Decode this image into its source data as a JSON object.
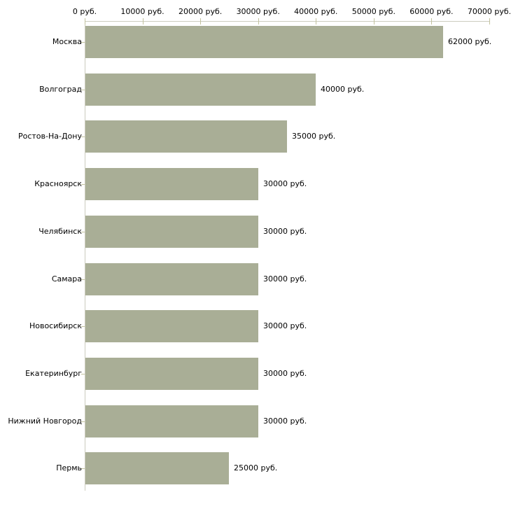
{
  "chart_data": {
    "type": "bar",
    "orientation": "horizontal",
    "title": "",
    "categories": [
      "Москва",
      "Волгоград",
      "Ростов-На-Дону",
      "Красноярск",
      "Челябинск",
      "Самара",
      "Новосибирск",
      "Екатеринбург",
      "Нижний Новгород",
      "Пермь"
    ],
    "values": [
      62000,
      40000,
      35000,
      30000,
      30000,
      30000,
      30000,
      30000,
      30000,
      25000
    ],
    "value_labels": [
      "62000 руб.",
      "40000 руб.",
      "35000 руб.",
      "30000 руб.",
      "30000 руб.",
      "30000 руб.",
      "30000 руб.",
      "30000 руб.",
      "30000 руб.",
      "25000 руб."
    ],
    "xlabel": "",
    "ylabel": "",
    "x_axis": {
      "position": "top",
      "min": 0,
      "max": 70000,
      "tick_values": [
        0,
        10000,
        20000,
        30000,
        40000,
        50000,
        60000,
        70000
      ],
      "tick_labels": [
        "0 руб.",
        "10000 руб.",
        "20000 руб.",
        "30000 руб.",
        "40000 руб.",
        "50000 руб.",
        "60000 руб.",
        "70000 руб."
      ]
    },
    "unit": "руб.",
    "legend": "none",
    "grid": "off",
    "colors": {
      "bar_fill": "#a9ae96",
      "axis_line": "#ccccbe",
      "tick_mark": "#c2c29e",
      "text": "#000000",
      "background": "#ffffff"
    }
  }
}
